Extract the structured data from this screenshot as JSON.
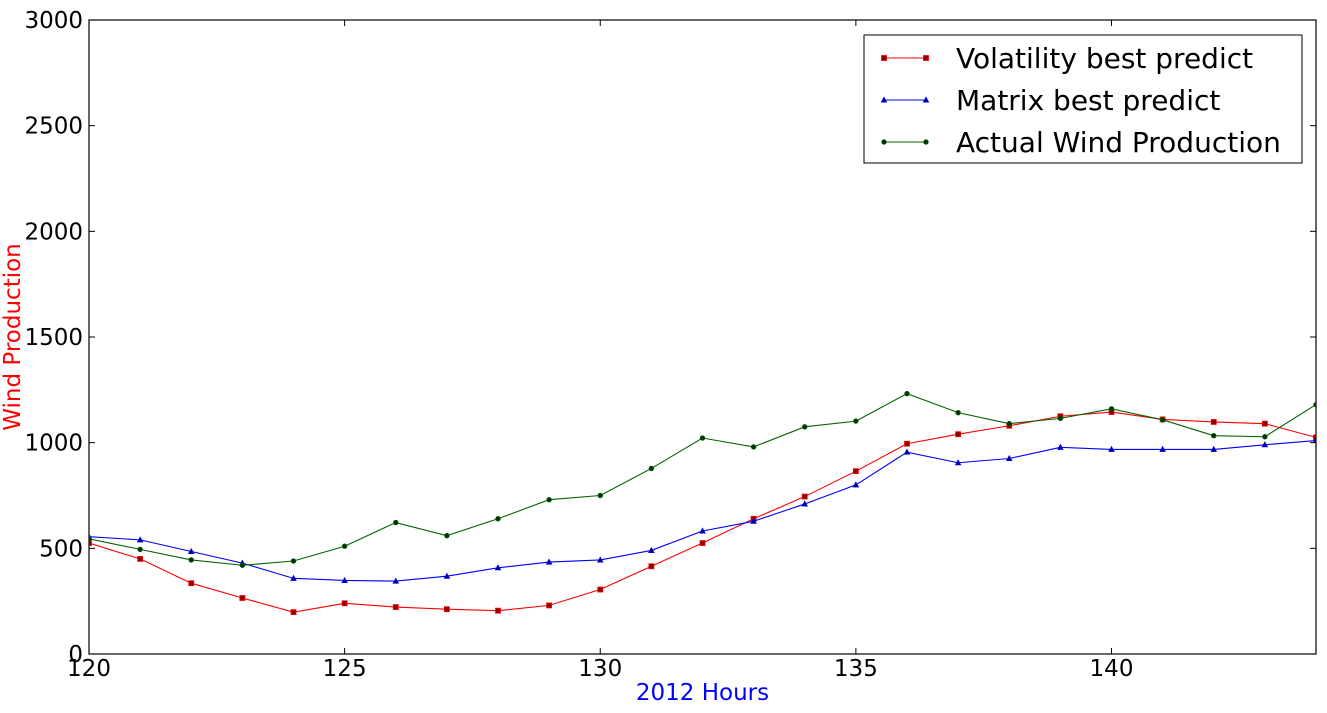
{
  "chart_data": {
    "type": "line",
    "xlabel": "2012 Hours",
    "ylabel": "Wind Production",
    "xlabel_color": "#0000ff",
    "ylabel_color": "#ff0000",
    "xlim": [
      120,
      144
    ],
    "ylim": [
      0,
      3000
    ],
    "x_ticks": [
      120,
      125,
      130,
      135,
      140
    ],
    "y_ticks": [
      0,
      500,
      1000,
      1500,
      2000,
      2500,
      3000
    ],
    "x_tick_labels": [
      "120",
      "125",
      "130",
      "135",
      "140"
    ],
    "y_tick_labels": [
      "0",
      "500",
      "1000",
      "1500",
      "2000",
      "2500",
      "3000"
    ],
    "grid": false,
    "legend_position": "top-right",
    "x": [
      120,
      121,
      122,
      123,
      124,
      125,
      126,
      127,
      128,
      129,
      130,
      131,
      132,
      133,
      134,
      135,
      136,
      137,
      138,
      139,
      140,
      141,
      142,
      143,
      144
    ],
    "series": [
      {
        "name": "Volatility best predict",
        "color": "#ff0000",
        "marker": "square",
        "values": [
          525,
          450,
          335,
          265,
          198,
          240,
          222,
          212,
          205,
          230,
          305,
          415,
          525,
          640,
          745,
          865,
          995,
          1040,
          1080,
          1125,
          1145,
          1110,
          1098,
          1090,
          1025
        ]
      },
      {
        "name": "Matrix best predict",
        "color": "#0000ff",
        "marker": "triangle",
        "values": [
          555,
          540,
          485,
          430,
          358,
          348,
          345,
          368,
          408,
          435,
          445,
          490,
          582,
          628,
          710,
          800,
          955,
          905,
          925,
          978,
          968,
          968,
          968,
          990,
          1010
        ]
      },
      {
        "name": "Actual Wind Production",
        "color": "#006400",
        "marker": "circle",
        "values": [
          545,
          495,
          445,
          420,
          440,
          510,
          622,
          560,
          640,
          730,
          750,
          878,
          1022,
          980,
          1075,
          1102,
          1232,
          1142,
          1090,
          1115,
          1160,
          1108,
          1033,
          1028,
          1180
        ]
      }
    ]
  }
}
